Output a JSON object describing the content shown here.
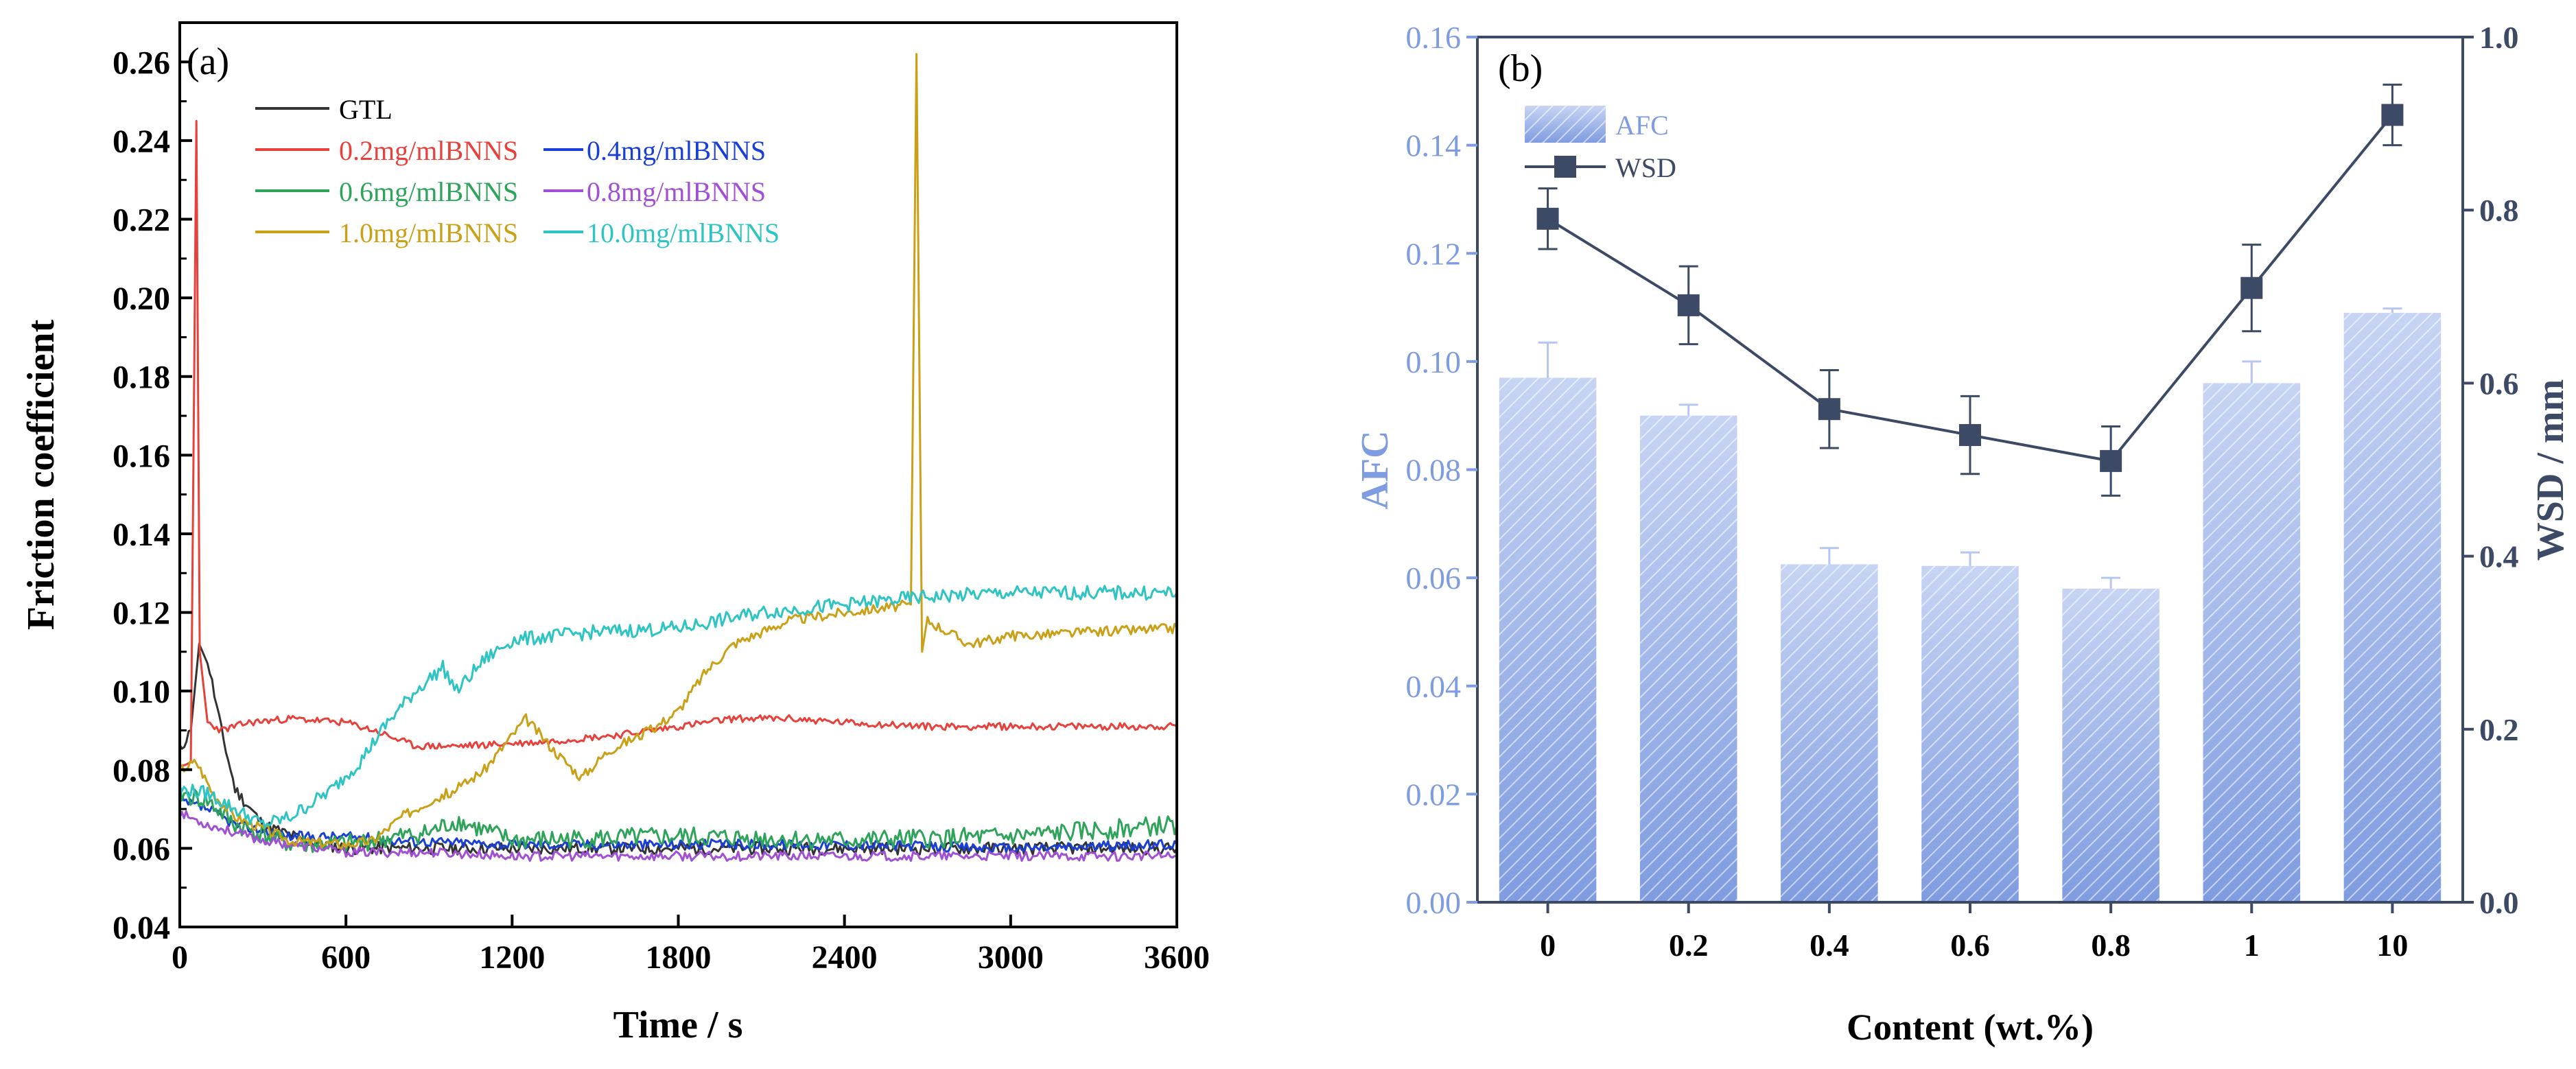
{
  "chart_data": [
    {
      "panel": "(a)",
      "type": "line",
      "title": "",
      "xlabel": "Time / s",
      "ylabel": "Friction coefficient",
      "xlim": [
        0,
        3600
      ],
      "ylim": [
        0.04,
        0.27
      ],
      "xticks": [
        0,
        600,
        1200,
        1800,
        2400,
        3000,
        3600
      ],
      "xtick_labels": [
        "0",
        "600",
        "1200",
        "1800",
        "2400",
        "3000",
        "3600"
      ],
      "yticks": [
        0.04,
        0.06,
        0.08,
        0.1,
        0.12,
        0.14,
        0.16,
        0.18,
        0.2,
        0.22,
        0.24,
        0.26
      ],
      "ytick_labels": [
        "0.04",
        "0.06",
        "0.08",
        "0.10",
        "0.12",
        "0.14",
        "0.16",
        "0.18",
        "0.20",
        "0.22",
        "0.24",
        "0.26"
      ],
      "legend_position": "top-left",
      "series": [
        {
          "name": "GTL",
          "color": "#333333",
          "noise": 0.0016,
          "seed": 11,
          "points": [
            [
              0,
              0.085
            ],
            [
              40,
              0.09
            ],
            [
              70,
              0.112
            ],
            [
              100,
              0.108
            ],
            [
              150,
              0.09
            ],
            [
              200,
              0.075
            ],
            [
              300,
              0.066
            ],
            [
              450,
              0.062
            ],
            [
              600,
              0.06
            ],
            [
              900,
              0.06
            ],
            [
              1200,
              0.06
            ],
            [
              1800,
              0.06
            ],
            [
              2400,
              0.06
            ],
            [
              3000,
              0.06
            ],
            [
              3600,
              0.06
            ]
          ]
        },
        {
          "name": "0.2mg/mlBNNS",
          "color": "#e8403a",
          "noise": 0.0009,
          "seed": 23,
          "points": [
            [
              0,
              0.08
            ],
            [
              40,
              0.082
            ],
            [
              60,
              0.245
            ],
            [
              72,
              0.11
            ],
            [
              100,
              0.092
            ],
            [
              150,
              0.09
            ],
            [
              250,
              0.092
            ],
            [
              400,
              0.093
            ],
            [
              600,
              0.092
            ],
            [
              700,
              0.09
            ],
            [
              850,
              0.086
            ],
            [
              1000,
              0.086
            ],
            [
              1300,
              0.087
            ],
            [
              1600,
              0.089
            ],
            [
              1800,
              0.091
            ],
            [
              2000,
              0.093
            ],
            [
              2200,
              0.093
            ],
            [
              2400,
              0.092
            ],
            [
              2700,
              0.091
            ],
            [
              3000,
              0.091
            ],
            [
              3300,
              0.091
            ],
            [
              3600,
              0.091
            ]
          ]
        },
        {
          "name": "0.4mg/mlBNNS",
          "color": "#1a3fd6",
          "noise": 0.0013,
          "seed": 37,
          "points": [
            [
              0,
              0.072
            ],
            [
              100,
              0.07
            ],
            [
              200,
              0.066
            ],
            [
              400,
              0.063
            ],
            [
              600,
              0.063
            ],
            [
              800,
              0.062
            ],
            [
              1200,
              0.061
            ],
            [
              1800,
              0.061
            ],
            [
              2400,
              0.061
            ],
            [
              3000,
              0.06
            ],
            [
              3600,
              0.061
            ]
          ]
        },
        {
          "name": "0.6mg/mlBNNS",
          "color": "#2ea35a",
          "noise": 0.0025,
          "seed": 41,
          "points": [
            [
              0,
              0.074
            ],
            [
              100,
              0.072
            ],
            [
              200,
              0.066
            ],
            [
              400,
              0.061
            ],
            [
              600,
              0.061
            ],
            [
              900,
              0.064
            ],
            [
              1000,
              0.067
            ],
            [
              1200,
              0.062
            ],
            [
              1800,
              0.063
            ],
            [
              2400,
              0.062
            ],
            [
              3000,
              0.063
            ],
            [
              3600,
              0.066
            ]
          ]
        },
        {
          "name": "0.8mg/mlBNNS",
          "color": "#a150d6",
          "noise": 0.0012,
          "seed": 53,
          "points": [
            [
              0,
              0.069
            ],
            [
              100,
              0.066
            ],
            [
              300,
              0.062
            ],
            [
              600,
              0.059
            ],
            [
              900,
              0.059
            ],
            [
              1200,
              0.058
            ],
            [
              1800,
              0.058
            ],
            [
              2400,
              0.058
            ],
            [
              3000,
              0.058
            ],
            [
              3600,
              0.058
            ]
          ]
        },
        {
          "name": "1.0mg/mlBNNS",
          "color": "#c9a016",
          "noise": 0.0013,
          "seed": 67,
          "points": [
            [
              0,
              0.08
            ],
            [
              60,
              0.082
            ],
            [
              120,
              0.074
            ],
            [
              200,
              0.068
            ],
            [
              400,
              0.062
            ],
            [
              600,
              0.061
            ],
            [
              700,
              0.062
            ],
            [
              800,
              0.068
            ],
            [
              900,
              0.072
            ],
            [
              1000,
              0.075
            ],
            [
              1100,
              0.08
            ],
            [
              1250,
              0.093
            ],
            [
              1350,
              0.085
            ],
            [
              1450,
              0.078
            ],
            [
              1550,
              0.085
            ],
            [
              1700,
              0.09
            ],
            [
              1800,
              0.095
            ],
            [
              1900,
              0.105
            ],
            [
              2000,
              0.112
            ],
            [
              2200,
              0.118
            ],
            [
              2400,
              0.12
            ],
            [
              2640,
              0.122
            ],
            [
              2660,
              0.262
            ],
            [
              2680,
              0.11
            ],
            [
              2700,
              0.118
            ],
            [
              2850,
              0.112
            ],
            [
              3000,
              0.114
            ],
            [
              3300,
              0.115
            ],
            [
              3600,
              0.116
            ]
          ]
        },
        {
          "name": "10.0mg/mlBNNS",
          "color": "#2ec4c4",
          "noise": 0.0018,
          "seed": 79,
          "points": [
            [
              0,
              0.075
            ],
            [
              100,
              0.074
            ],
            [
              200,
              0.07
            ],
            [
              300,
              0.066
            ],
            [
              400,
              0.068
            ],
            [
              550,
              0.075
            ],
            [
              650,
              0.082
            ],
            [
              750,
              0.092
            ],
            [
              850,
              0.1
            ],
            [
              950,
              0.106
            ],
            [
              1000,
              0.1
            ],
            [
              1100,
              0.108
            ],
            [
              1200,
              0.113
            ],
            [
              1500,
              0.115
            ],
            [
              1800,
              0.116
            ],
            [
              2100,
              0.12
            ],
            [
              2400,
              0.122
            ],
            [
              2700,
              0.124
            ],
            [
              3000,
              0.125
            ],
            [
              3300,
              0.125
            ],
            [
              3600,
              0.125
            ]
          ]
        }
      ]
    },
    {
      "panel": "(b)",
      "type": "bar",
      "title": "",
      "xlabel": "Content (wt.%)",
      "categories": [
        "0",
        "0.2",
        "0.4",
        "0.6",
        "0.8",
        "1",
        "10"
      ],
      "legend_position": "top-left",
      "y_left": {
        "label": "AFC",
        "ylim": [
          0,
          0.16
        ],
        "ticks": [
          0.0,
          0.02,
          0.04,
          0.06,
          0.08,
          0.1,
          0.12,
          0.14,
          0.16
        ],
        "tick_labels": [
          "0.00",
          "0.02",
          "0.04",
          "0.06",
          "0.08",
          "0.10",
          "0.12",
          "0.14",
          "0.16"
        ],
        "color": "#7f9ce0"
      },
      "y_right": {
        "label": "WSD / mm",
        "ylim": [
          0,
          1.0
        ],
        "ticks": [
          0.0,
          0.2,
          0.4,
          0.6,
          0.8,
          1.0
        ],
        "tick_labels": [
          "0.0",
          "0.2",
          "0.4",
          "0.6",
          "0.8",
          "1.0"
        ],
        "color": "#3d4a66"
      },
      "series": [
        {
          "name": "AFC",
          "kind": "bar",
          "axis": "left",
          "color": "#7f9ce0",
          "values": [
            0.097,
            0.09,
            0.0625,
            0.0622,
            0.058,
            0.096,
            0.109
          ],
          "errors": [
            0.0065,
            0.002,
            0.003,
            0.0025,
            0.002,
            0.004,
            0.0008
          ]
        },
        {
          "name": "WSD",
          "kind": "line",
          "axis": "right",
          "color": "#3d4a66",
          "values": [
            0.79,
            0.69,
            0.57,
            0.54,
            0.51,
            0.71,
            0.91
          ],
          "errors": [
            0.035,
            0.045,
            0.045,
            0.045,
            0.04,
            0.05,
            0.035
          ]
        }
      ]
    }
  ]
}
